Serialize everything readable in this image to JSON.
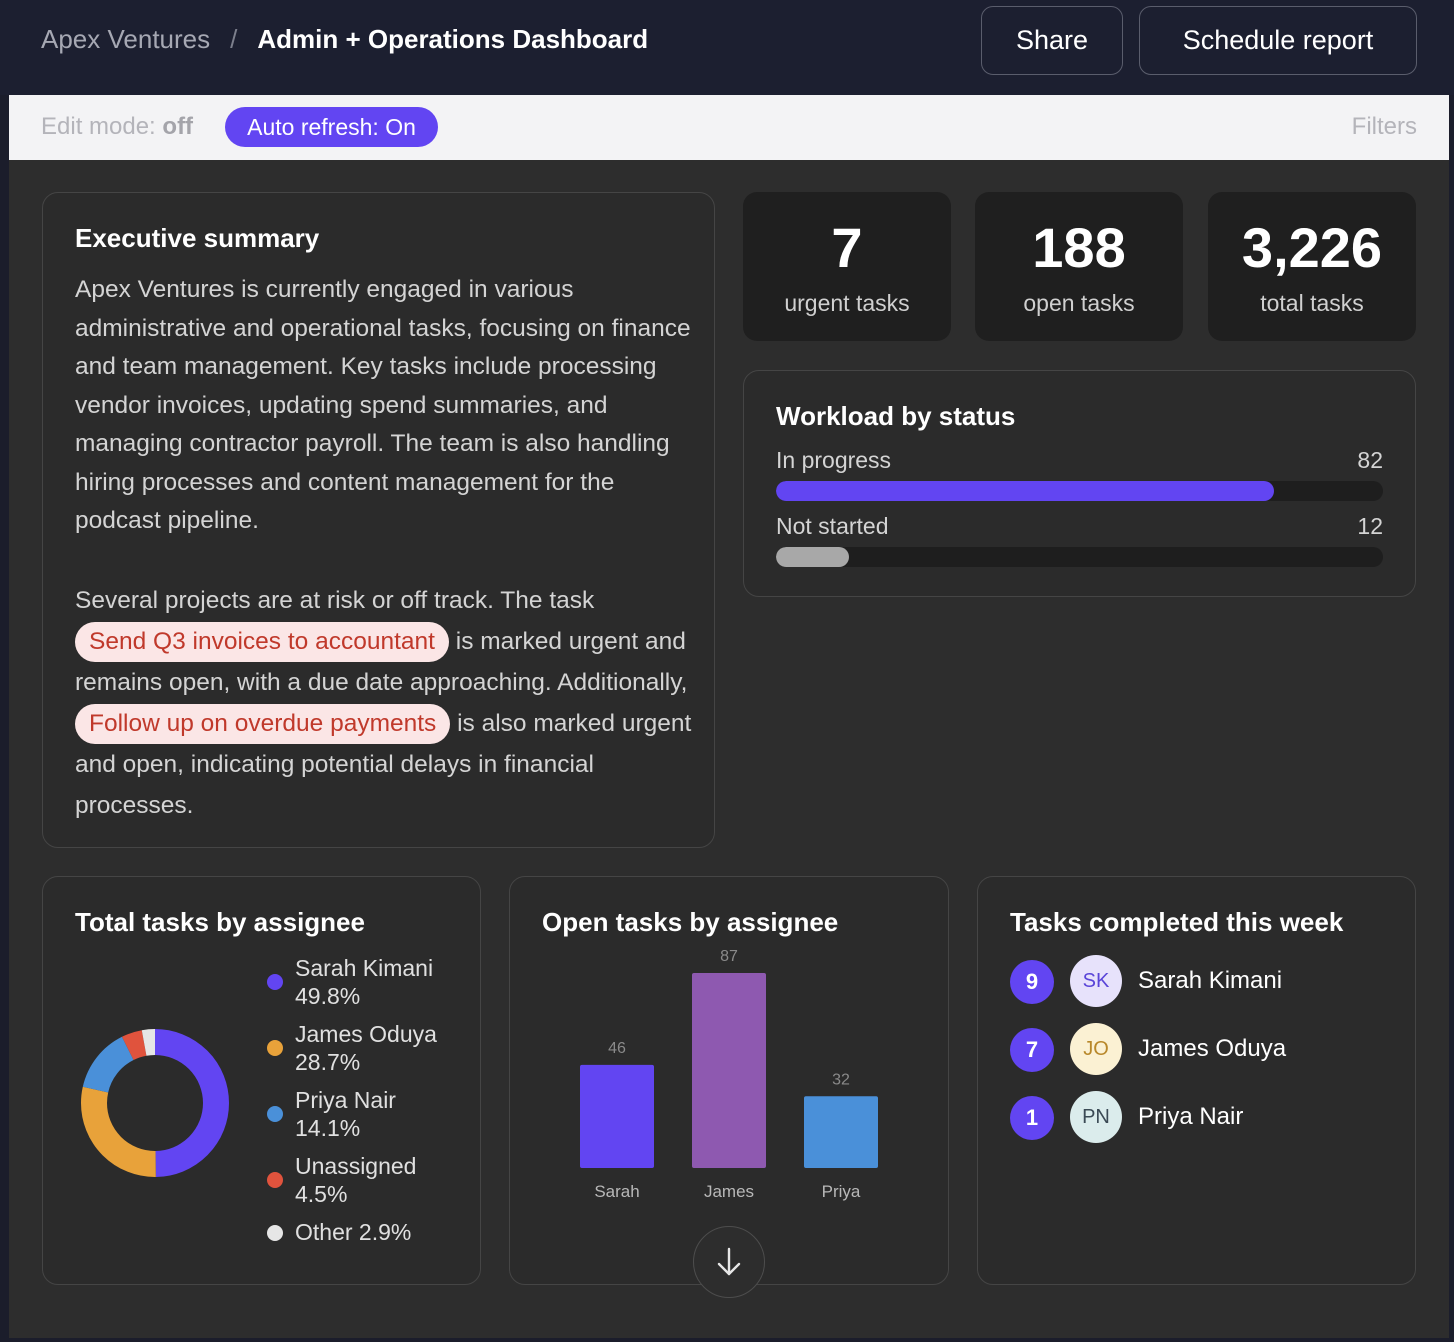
{
  "header": {
    "breadcrumb_root": "Apex Ventures",
    "breadcrumb_separator": "/",
    "title": "Admin + Operations Dashboard",
    "share_label": "Share",
    "schedule_label": "Schedule report"
  },
  "toolbar": {
    "edit_mode_label": "Edit mode:",
    "edit_mode_value": "off",
    "auto_refresh_label": "Auto refresh: On",
    "filters_label": "Filters"
  },
  "summary": {
    "title": "Executive summary",
    "paragraph_1": "Apex Ventures is currently engaged in various administrative and operational tasks, focusing on finance and team management. Key tasks include processing vendor invoices, updating spend summaries, and managing contractor payroll. The team is also handling hiring processes and content management for the podcast pipeline.",
    "p2_part_1": "Several projects are at risk or off track. The task ",
    "task_1": "Send Q3 invoices to accountant",
    "p2_part_2": " is marked urgent and remains open, with a due date approaching. Additionally, ",
    "task_2": "Follow up on overdue payments",
    "p2_part_3": " is also marked urgent and open, indicating potential delays in financial processes."
  },
  "stats": [
    {
      "value": "7",
      "label": "urgent tasks"
    },
    {
      "value": "188",
      "label": "open tasks"
    },
    {
      "value": "3,226",
      "label": "total tasks"
    }
  ],
  "workload": {
    "title": "Workload by status",
    "max": 100,
    "rows": [
      {
        "label": "In progress",
        "count": 82,
        "color": "#6245f2"
      },
      {
        "label": "Not started",
        "count": 12,
        "color": "#a8a8a8"
      }
    ]
  },
  "total_by_assignee": {
    "title": "Total tasks by assignee",
    "chart_data": {
      "type": "pie",
      "title": "Total tasks by assignee",
      "slices": [
        {
          "name": "Sarah Kimani",
          "label": "49.8%",
          "value": 49.8,
          "color": "#6245f2"
        },
        {
          "name": "James Oduya",
          "label": "28.7%",
          "value": 28.7,
          "color": "#e8a23a"
        },
        {
          "name": "Priya Nair",
          "label": "14.1%",
          "value": 14.1,
          "color": "#4a90d9"
        },
        {
          "name": "Unassigned",
          "label": "4.5%",
          "value": 4.5,
          "color": "#e0533d"
        },
        {
          "name": "Other",
          "label": "2.9%",
          "value": 2.9,
          "color": "#e6e6e6",
          "inline": true
        }
      ]
    }
  },
  "open_by_assignee": {
    "title": "Open tasks by assignee",
    "chart_data": {
      "type": "bar",
      "title": "Open tasks by assignee",
      "categories": [
        "Sarah",
        "James",
        "Priya"
      ],
      "values": [
        46,
        87,
        32
      ],
      "colors": [
        "#6245f2",
        "#8e59b0",
        "#4a90d9"
      ],
      "ylim": [
        0,
        87
      ]
    }
  },
  "completed": {
    "title": "Tasks completed this week",
    "rows": [
      {
        "count": "9",
        "initials": "SK",
        "name": "Sarah Kimani",
        "avatar_bg": "#e7e2fb",
        "avatar_fg": "#5a45d8"
      },
      {
        "count": "7",
        "initials": "JO",
        "name": "James Oduya",
        "avatar_bg": "#fbf1d3",
        "avatar_fg": "#b8882a"
      },
      {
        "count": "1",
        "initials": "PN",
        "name": "Priya Nair",
        "avatar_bg": "#dbecec",
        "avatar_fg": "#3b4a55"
      }
    ]
  },
  "scroll_icon": "arrow-down-icon"
}
